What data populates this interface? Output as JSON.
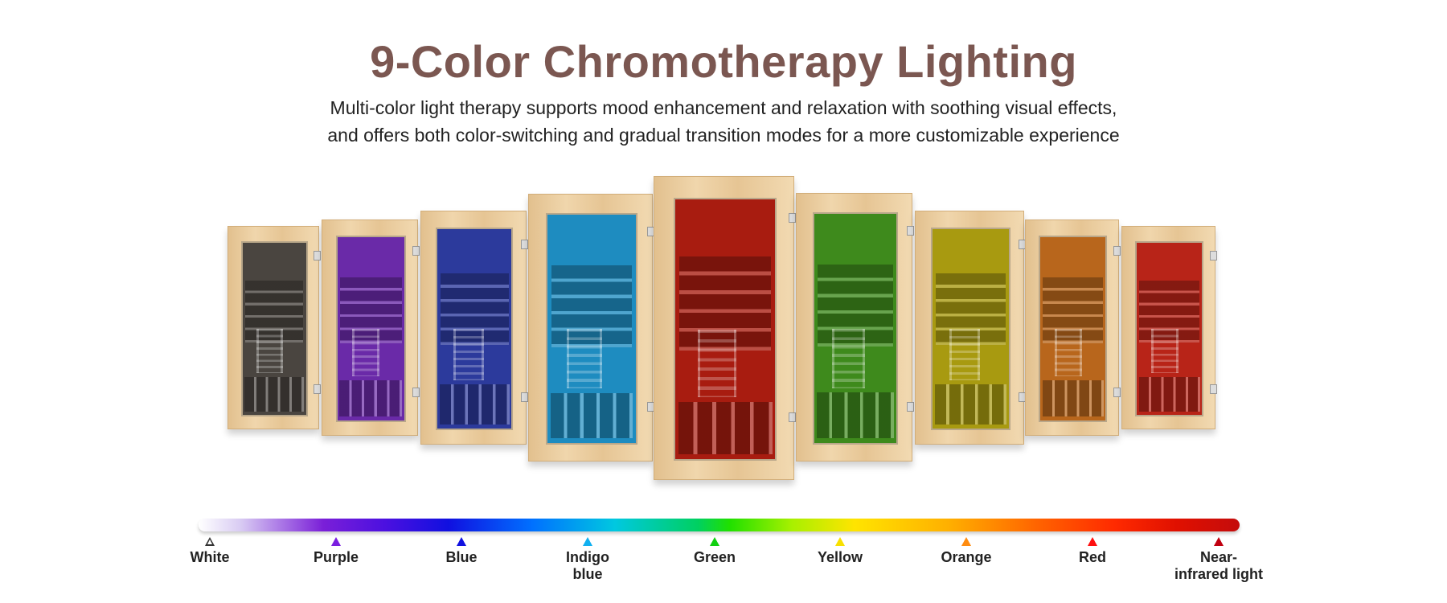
{
  "header": {
    "title": "9-Color Chromotherapy Lighting",
    "subtitle_line1": "Multi-color light therapy supports mood enhancement and relaxation with soothing visual effects,",
    "subtitle_line2": "and offers both color-switching and gradual transition modes for a more customizable experience"
  },
  "doors": [
    {
      "color": "#4a4540"
    },
    {
      "color": "#6a2aa8"
    },
    {
      "color": "#2c3a9c"
    },
    {
      "color": "#1e8cc0"
    },
    {
      "color": "#a81c10"
    },
    {
      "color": "#3e8a1c"
    },
    {
      "color": "#a89a10"
    },
    {
      "color": "#b8661c"
    },
    {
      "color": "#b82418"
    }
  ],
  "spectrum": {
    "items": [
      {
        "label": "White",
        "color": "#ffffff"
      },
      {
        "label": "Purple",
        "color": "#7b1fe0"
      },
      {
        "label": "Blue",
        "color": "#1010e0"
      },
      {
        "label": "Indigo\nblue",
        "color": "#10b0f0"
      },
      {
        "label": "Green",
        "color": "#10d010"
      },
      {
        "label": "Yellow",
        "color": "#f8e000"
      },
      {
        "label": "Orange",
        "color": "#ff8c10"
      },
      {
        "label": "Red",
        "color": "#ff1010"
      },
      {
        "label": "Near-\ninfrared light",
        "color": "#c00010"
      }
    ]
  }
}
